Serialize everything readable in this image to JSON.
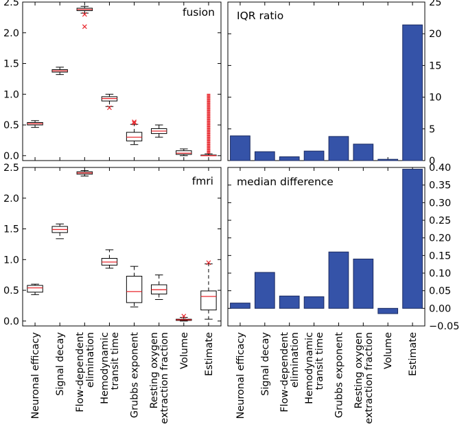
{
  "chart_data": [
    {
      "id": "fusion",
      "type": "box",
      "title": "fusion",
      "categories": [
        "Neuronal efficacy",
        "Signal decay",
        "Flow-dependent\nelimination",
        "Hemodynamic\ntransit time",
        "Grubbs exponent",
        "Resting oxygen\nextraction fraction",
        "Volume",
        "Estimate"
      ],
      "ylim": [
        -0.08,
        2.5
      ],
      "yticks": [
        "0.0",
        "0.5",
        "1.0",
        "1.5",
        "2.0",
        "2.5"
      ],
      "boxes": [
        {
          "whislo": 0.46,
          "q1": 0.5,
          "med": 0.52,
          "q3": 0.54,
          "whishi": 0.57,
          "fliers": []
        },
        {
          "whislo": 1.32,
          "q1": 1.36,
          "med": 1.38,
          "q3": 1.4,
          "whishi": 1.44,
          "fliers": []
        },
        {
          "whislo": 2.32,
          "q1": 2.36,
          "med": 2.38,
          "q3": 2.4,
          "whishi": 2.43,
          "fliers": [
            2.1,
            2.3
          ]
        },
        {
          "whislo": 0.8,
          "q1": 0.89,
          "med": 0.93,
          "q3": 0.96,
          "whishi": 1.0,
          "fliers": [
            0.78
          ]
        },
        {
          "whislo": 0.18,
          "q1": 0.24,
          "med": 0.3,
          "q3": 0.38,
          "whishi": 0.51,
          "fliers": [
            0.53,
            0.55
          ]
        },
        {
          "whislo": 0.3,
          "q1": 0.36,
          "med": 0.4,
          "q3": 0.44,
          "whishi": 0.5,
          "fliers": []
        },
        {
          "whislo": 0.0,
          "q1": 0.02,
          "med": 0.04,
          "q3": 0.08,
          "whishi": 0.11,
          "fliers": []
        },
        {
          "whislo": 0.0,
          "q1": 0.0,
          "med": 0.0,
          "q3": 0.01,
          "whishi": 0.03,
          "fliers_range": [
            0.04,
            1.0
          ]
        }
      ]
    },
    {
      "id": "iqr",
      "type": "bar",
      "title": "IQR ratio",
      "categories": [
        "Neuronal efficacy",
        "Signal decay",
        "Flow-dependent\nelimination",
        "Hemodynamic\ntransit time",
        "Grubbs exponent",
        "Resting oxygen\nextraction fraction",
        "Volume",
        "Estimate"
      ],
      "values": [
        3.9,
        1.4,
        0.6,
        1.5,
        3.8,
        2.6,
        0.2,
        21.4
      ],
      "ylim": [
        0,
        25
      ],
      "yticks": [
        "0",
        "5",
        "10",
        "15",
        "20",
        "25"
      ]
    },
    {
      "id": "fmri",
      "type": "box",
      "title": "fmri",
      "categories": [
        "Neuronal efficacy",
        "Signal decay",
        "Flow-dependent\nelimination",
        "Hemodynamic\ntransit time",
        "Grubbs exponent",
        "Resting oxygen\nextraction fraction",
        "Volume",
        "Estimate"
      ],
      "ylim": [
        -0.08,
        2.5
      ],
      "yticks": [
        "0.0",
        "0.5",
        "1.0",
        "1.5",
        "2.0",
        "2.5"
      ],
      "boxes": [
        {
          "whislo": 0.43,
          "q1": 0.47,
          "med": 0.54,
          "q3": 0.58,
          "whishi": 0.6,
          "fliers": []
        },
        {
          "whislo": 1.34,
          "q1": 1.44,
          "med": 1.49,
          "q3": 1.54,
          "whishi": 1.58,
          "fliers": []
        },
        {
          "whislo": 2.36,
          "q1": 2.39,
          "med": 2.41,
          "q3": 2.43,
          "whishi": 2.45,
          "fliers": []
        },
        {
          "whislo": 0.86,
          "q1": 0.91,
          "med": 0.96,
          "q3": 1.02,
          "whishi": 1.16,
          "fliers": []
        },
        {
          "whislo": 0.23,
          "q1": 0.3,
          "med": 0.48,
          "q3": 0.73,
          "whishi": 0.89,
          "fliers": []
        },
        {
          "whislo": 0.35,
          "q1": 0.44,
          "med": 0.51,
          "q3": 0.59,
          "whishi": 0.75,
          "fliers": []
        },
        {
          "whislo": 0.0,
          "q1": 0.01,
          "med": 0.02,
          "q3": 0.03,
          "whishi": 0.06,
          "fliers": [
            0.08
          ]
        },
        {
          "whislo": 0.03,
          "q1": 0.18,
          "med": 0.4,
          "q3": 0.49,
          "whishi": 0.93,
          "fliers": [
            0.95
          ]
        }
      ]
    },
    {
      "id": "median",
      "type": "bar",
      "title": "median difference",
      "categories": [
        "Neuronal efficacy",
        "Signal decay",
        "Flow-dependent\nelimination",
        "Hemodynamic\ntransit time",
        "Grubbs exponent",
        "Resting oxygen\nextraction fraction",
        "Volume",
        "Estimate"
      ],
      "values": [
        0.015,
        0.102,
        0.035,
        0.033,
        0.16,
        0.14,
        -0.015,
        0.395
      ],
      "ylim": [
        -0.05,
        0.4
      ],
      "yticks": [
        "−0.05",
        "0.00",
        "0.05",
        "0.10",
        "0.15",
        "0.20",
        "0.25",
        "0.30",
        "0.35",
        "0.40"
      ]
    }
  ]
}
